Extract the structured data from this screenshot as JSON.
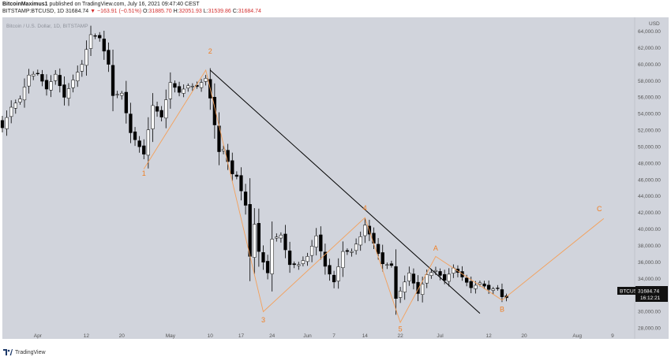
{
  "header": {
    "author": "BitcoinMaximus1",
    "published_text": "published on TradingView.com, July 16, 2021 09:47:40 CEST",
    "symbol_line": "BITSTAMP:BTCUSD, 1D",
    "last": "31684.74",
    "change": "▼ −163.91 (−0.51%)",
    "o_label": "O:",
    "o_value": "31885.70",
    "h_label": "H:",
    "h_value": "32051.93",
    "l_label": "L:",
    "l_value": "31539.86",
    "c_label": "C:",
    "c_value": "31684.74"
  },
  "chart_title": "Bitcoin / U.S. Dollar, 1D, BITSTAMP",
  "price_label": {
    "symbol": "BTCUSD",
    "price": "31684.74",
    "countdown": "16:12:21"
  },
  "footer": {
    "brand": "TradingView"
  },
  "colors": {
    "background": "#d1d4dc",
    "up_candle": "#ffffff",
    "down_candle": "#000000",
    "wave": "#f4a05a",
    "wave_label": "#f07f24",
    "trendline": "#000000"
  },
  "chart_data": {
    "type": "candlestick",
    "title": "Bitcoin / U.S. Dollar, 1D, BITSTAMP",
    "y_unit": "USD",
    "ylim": [
      26700,
      65700
    ],
    "y_ticks": [
      28000,
      30000,
      32000,
      34000,
      36000,
      38000,
      40000,
      42000,
      44000,
      46000,
      48000,
      50000,
      52000,
      54000,
      56000,
      58000,
      60000,
      62000,
      64000
    ],
    "x_start": "2021-03-24",
    "x_end": "2021-08-14",
    "x_ticks": [
      {
        "label": "Apr",
        "date": "2021-04-01"
      },
      {
        "label": "12",
        "date": "2021-04-12"
      },
      {
        "label": "20",
        "date": "2021-04-20"
      },
      {
        "label": "May",
        "date": "2021-05-01"
      },
      {
        "label": "10",
        "date": "2021-05-10"
      },
      {
        "label": "17",
        "date": "2021-05-17"
      },
      {
        "label": "24",
        "date": "2021-05-24"
      },
      {
        "label": "Jun",
        "date": "2021-06-01"
      },
      {
        "label": "7",
        "date": "2021-06-07"
      },
      {
        "label": "14",
        "date": "2021-06-14"
      },
      {
        "label": "22",
        "date": "2021-06-22"
      },
      {
        "label": "Jul",
        "date": "2021-07-01"
      },
      {
        "label": "12",
        "date": "2021-07-12"
      },
      {
        "label": "20",
        "date": "2021-07-20"
      },
      {
        "label": "Aug",
        "date": "2021-08-01"
      },
      {
        "label": "9",
        "date": "2021-08-09"
      }
    ],
    "close_series": [
      {
        "date": "2021-03-24",
        "close": 52300
      },
      {
        "date": "2021-03-26",
        "close": 54800
      },
      {
        "date": "2021-03-28",
        "close": 55800
      },
      {
        "date": "2021-03-30",
        "close": 58700
      },
      {
        "date": "2021-04-01",
        "close": 58900
      },
      {
        "date": "2021-04-03",
        "close": 57000
      },
      {
        "date": "2021-04-05",
        "close": 58800
      },
      {
        "date": "2021-04-07",
        "close": 56000
      },
      {
        "date": "2021-04-09",
        "close": 58100
      },
      {
        "date": "2021-04-11",
        "close": 60000
      },
      {
        "date": "2021-04-13",
        "close": 63600
      },
      {
        "date": "2021-04-15",
        "close": 63200
      },
      {
        "date": "2021-04-17",
        "close": 60000
      },
      {
        "date": "2021-04-18",
        "close": 56200
      },
      {
        "date": "2021-04-20",
        "close": 56500
      },
      {
        "date": "2021-04-22",
        "close": 51700
      },
      {
        "date": "2021-04-24",
        "close": 50000
      },
      {
        "date": "2021-04-25",
        "close": 49100
      },
      {
        "date": "2021-04-27",
        "close": 55000
      },
      {
        "date": "2021-04-29",
        "close": 53600
      },
      {
        "date": "2021-05-01",
        "close": 57800
      },
      {
        "date": "2021-05-03",
        "close": 56600
      },
      {
        "date": "2021-05-05",
        "close": 57400
      },
      {
        "date": "2021-05-07",
        "close": 57300
      },
      {
        "date": "2021-05-09",
        "close": 58300
      },
      {
        "date": "2021-05-10",
        "close": 55900
      },
      {
        "date": "2021-05-12",
        "close": 49400
      },
      {
        "date": "2021-05-13",
        "close": 49700
      },
      {
        "date": "2021-05-15",
        "close": 46700
      },
      {
        "date": "2021-05-16",
        "close": 46400
      },
      {
        "date": "2021-05-18",
        "close": 42900
      },
      {
        "date": "2021-05-19",
        "close": 36700
      },
      {
        "date": "2021-05-20",
        "close": 40600
      },
      {
        "date": "2021-05-21",
        "close": 37300
      },
      {
        "date": "2021-05-23",
        "close": 34700
      },
      {
        "date": "2021-05-24",
        "close": 38800
      },
      {
        "date": "2021-05-26",
        "close": 39300
      },
      {
        "date": "2021-05-28",
        "close": 35700
      },
      {
        "date": "2021-05-30",
        "close": 35700
      },
      {
        "date": "2021-06-01",
        "close": 36700
      },
      {
        "date": "2021-06-03",
        "close": 39200
      },
      {
        "date": "2021-06-05",
        "close": 35500
      },
      {
        "date": "2021-06-07",
        "close": 33600
      },
      {
        "date": "2021-06-09",
        "close": 37300
      },
      {
        "date": "2021-06-11",
        "close": 37300
      },
      {
        "date": "2021-06-13",
        "close": 39100
      },
      {
        "date": "2021-06-14",
        "close": 40500
      },
      {
        "date": "2021-06-16",
        "close": 38300
      },
      {
        "date": "2021-06-18",
        "close": 35800
      },
      {
        "date": "2021-06-20",
        "close": 35600
      },
      {
        "date": "2021-06-21",
        "close": 31600
      },
      {
        "date": "2021-06-22",
        "close": 32500
      },
      {
        "date": "2021-06-24",
        "close": 34700
      },
      {
        "date": "2021-06-26",
        "close": 32200
      },
      {
        "date": "2021-06-28",
        "close": 34500
      },
      {
        "date": "2021-06-30",
        "close": 35000
      },
      {
        "date": "2021-07-02",
        "close": 33800
      },
      {
        "date": "2021-07-04",
        "close": 35300
      },
      {
        "date": "2021-07-06",
        "close": 34200
      },
      {
        "date": "2021-07-08",
        "close": 32900
      },
      {
        "date": "2021-07-10",
        "close": 33500
      },
      {
        "date": "2021-07-12",
        "close": 32700
      },
      {
        "date": "2021-07-14",
        "close": 32800
      },
      {
        "date": "2021-07-15",
        "close": 31800
      },
      {
        "date": "2021-07-16",
        "close": 31685
      }
    ],
    "annotations": {
      "wave_labels": [
        {
          "text": "1",
          "date": "2021-04-25",
          "price": 46500
        },
        {
          "text": "2",
          "date": "2021-05-10",
          "price": 61300
        },
        {
          "text": "3",
          "date": "2021-05-22",
          "price": 28700
        },
        {
          "text": "4",
          "date": "2021-06-14",
          "price": 42300
        },
        {
          "text": "5",
          "date": "2021-06-22",
          "price": 27600
        },
        {
          "text": "A",
          "date": "2021-06-30",
          "price": 37400
        },
        {
          "text": "B",
          "date": "2021-07-15",
          "price": 30000
        },
        {
          "text": "C",
          "date": "2021-08-06",
          "price": 42200
        }
      ],
      "wave_path": [
        {
          "date": "2021-04-25",
          "price": 47300
        },
        {
          "date": "2021-05-09",
          "price": 59300
        },
        {
          "date": "2021-05-22",
          "price": 30000
        },
        {
          "date": "2021-06-14",
          "price": 41400
        },
        {
          "date": "2021-06-22",
          "price": 28700
        },
        {
          "date": "2021-06-30",
          "price": 36700
        },
        {
          "date": "2021-07-15",
          "price": 31400
        },
        {
          "date": "2021-08-07",
          "price": 41300
        }
      ],
      "trendline": [
        {
          "date": "2021-05-10",
          "price": 59300
        },
        {
          "date": "2021-07-10",
          "price": 29800
        }
      ]
    }
  }
}
